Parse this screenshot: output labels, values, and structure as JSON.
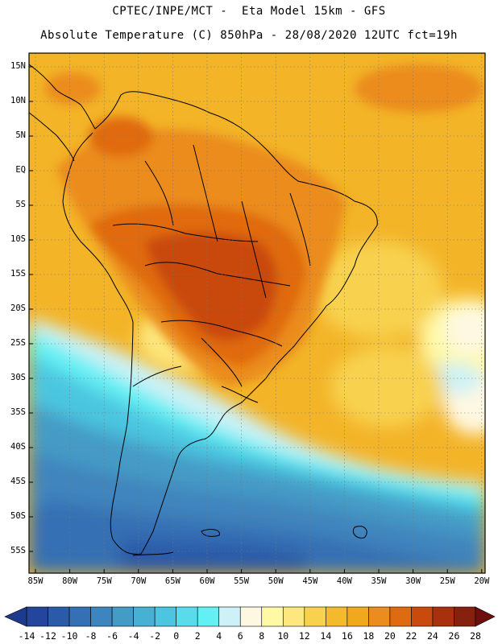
{
  "header": {
    "title_line1": "CPTEC/INPE/MCT -  Eta Model 15km - GFS",
    "title_line2": "Absolute Temperature (C) 850hPa - 28/08/2020 12UTC fct=19h"
  },
  "map": {
    "latitude_labels": [
      "15N",
      "10N",
      "5N",
      "EQ",
      "5S",
      "10S",
      "15S",
      "20S",
      "25S",
      "30S",
      "35S",
      "40S",
      "45S",
      "50S",
      "55S"
    ],
    "longitude_labels": [
      "85W",
      "80W",
      "75W",
      "70W",
      "65W",
      "60W",
      "55W",
      "50W",
      "45W",
      "40W",
      "35W",
      "30W",
      "25W",
      "20W"
    ]
  },
  "colorbar": {
    "labels": [
      "-14",
      "-12",
      "-10",
      "-8",
      "-6",
      "-4",
      "-2",
      "0",
      "2",
      "4",
      "6",
      "8",
      "10",
      "12",
      "14",
      "16",
      "18",
      "20",
      "22",
      "24",
      "26",
      "28"
    ],
    "colors": [
      "#23459b",
      "#2a5aa8",
      "#3570b4",
      "#3f85bd",
      "#449bc6",
      "#46b1d2",
      "#4cc6e0",
      "#5adbeb",
      "#63f0f4",
      "#cdf1f6",
      "#fef8e2",
      "#fff9a6",
      "#fde77e",
      "#f8d24f",
      "#f3bb2b",
      "#f0a81d",
      "#eb8c1e",
      "#e06a10",
      "#c94a0c",
      "#a8300e",
      "#86210f"
    ],
    "under_color": "#1d3a8e",
    "over_color": "#6e0f0f"
  }
}
